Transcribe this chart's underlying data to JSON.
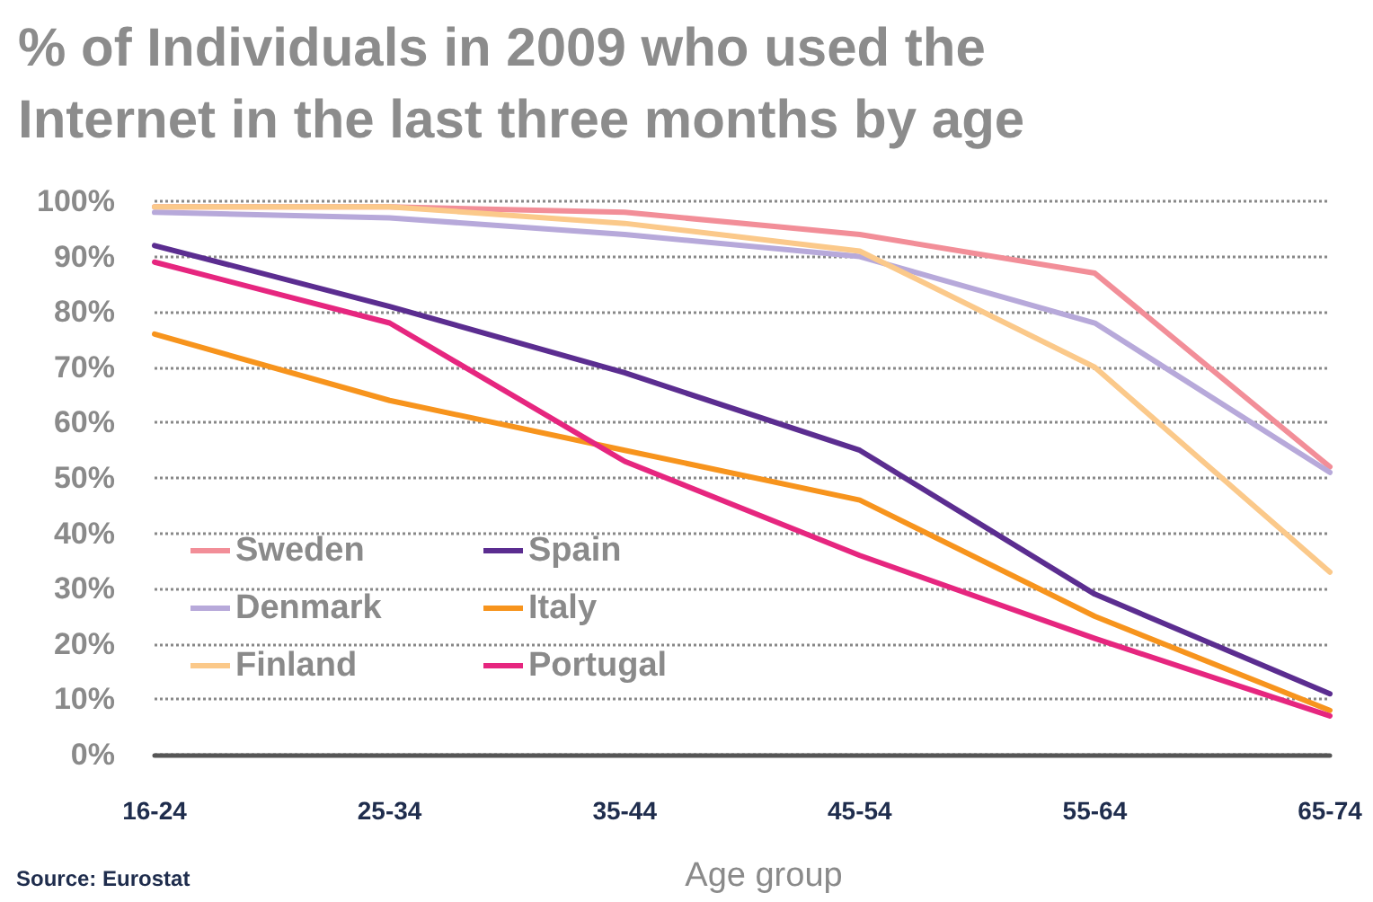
{
  "chart_data": {
    "type": "line",
    "title": "% of Individuals in 2009 who used the Internet in the last three months by age",
    "xlabel": "Age group",
    "annotations": [
      "Source: Eurostat"
    ],
    "categories": [
      "16-24",
      "25-34",
      "35-44",
      "45-54",
      "55-64",
      "65-74"
    ],
    "series": [
      {
        "name": "Sweden",
        "color": "#f28e98",
        "values": [
          99,
          99,
          98,
          94,
          87,
          52
        ]
      },
      {
        "name": "Denmark",
        "color": "#b7a9da",
        "values": [
          98,
          97,
          94,
          90,
          78,
          51
        ]
      },
      {
        "name": "Finland",
        "color": "#fbc98a",
        "values": [
          99,
          99,
          96,
          91,
          70,
          33
        ]
      },
      {
        "name": "Spain",
        "color": "#5b2d90",
        "values": [
          92,
          81,
          69,
          55,
          29,
          11
        ]
      },
      {
        "name": "Italy",
        "color": "#f7941d",
        "values": [
          76,
          64,
          55,
          46,
          25,
          8
        ]
      },
      {
        "name": "Portugal",
        "color": "#e6267f",
        "values": [
          89,
          78,
          53,
          36,
          21,
          7
        ]
      }
    ],
    "ylim": [
      0,
      100
    ],
    "yticks": [
      {
        "value": 0,
        "label": "0%"
      },
      {
        "value": 10,
        "label": "10%"
      },
      {
        "value": 20,
        "label": "20%"
      },
      {
        "value": 30,
        "label": "30%"
      },
      {
        "value": 40,
        "label": "40%"
      },
      {
        "value": 50,
        "label": "50%"
      },
      {
        "value": 60,
        "label": "60%"
      },
      {
        "value": 70,
        "label": "70%"
      },
      {
        "value": 80,
        "label": "80%"
      },
      {
        "value": 90,
        "label": "90%"
      },
      {
        "value": 100,
        "label": "100%"
      }
    ],
    "grid": "y",
    "legend": "bottom left",
    "marker": "none",
    "line_style": "solid"
  }
}
